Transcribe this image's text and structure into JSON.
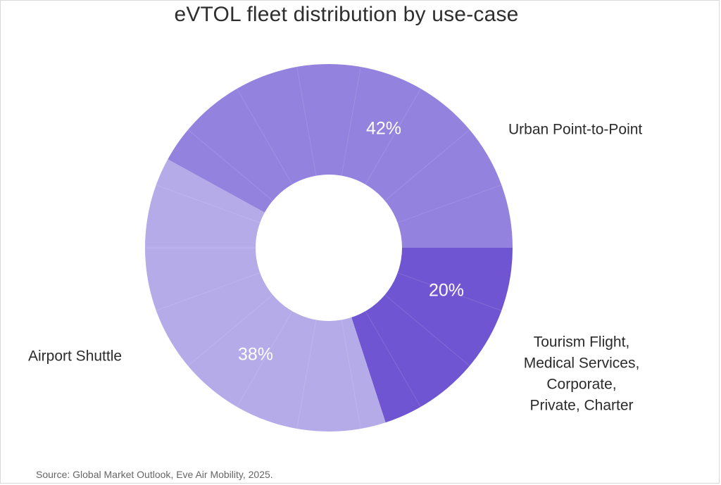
{
  "title": "eVTOL fleet distribution by use-case",
  "source": "Source: Global Market Outlook, Eve Air Mobility, 2025.",
  "colors": {
    "urban": "#9482df",
    "other": "#7055d2",
    "airport": "#b6abe9",
    "divider": "#ffffff"
  },
  "chart_data": {
    "type": "pie",
    "donut": true,
    "title": "eVTOL fleet distribution by use-case",
    "series": [
      {
        "label": "Urban Point-to-Point",
        "value": 42,
        "value_label": "42%",
        "color": "#9482df",
        "label_lines": [
          "Urban Point-to-Point"
        ]
      },
      {
        "label": "Tourism Flight, Medical Services, Corporate, Private, Charter",
        "value": 20,
        "value_label": "20%",
        "color": "#7055d2",
        "label_lines": [
          "Tourism Flight,",
          "Medical Services,",
          "Corporate,",
          "Private, Charter"
        ]
      },
      {
        "label": "Airport Shuttle",
        "value": 38,
        "value_label": "38%",
        "color": "#b6abe9",
        "label_lines": [
          "Airport Shuttle"
        ]
      }
    ]
  }
}
